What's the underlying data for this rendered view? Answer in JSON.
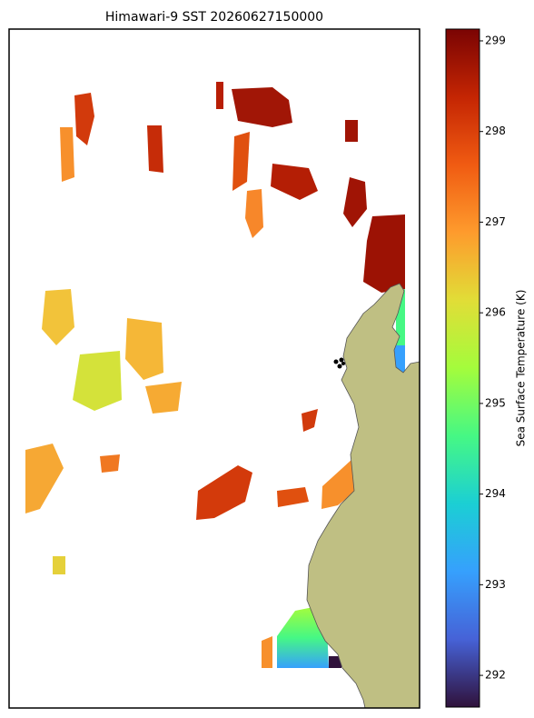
{
  "map": {
    "title": "Himawari-9 SST 20260627150000",
    "colorbar": {
      "label": "Sea Surface Temperature (K)",
      "colormap": "turbo",
      "lim": [
        291.65,
        299.13
      ],
      "ticks": [
        292,
        293,
        294,
        295,
        296,
        297,
        298,
        299
      ]
    }
  }
}
